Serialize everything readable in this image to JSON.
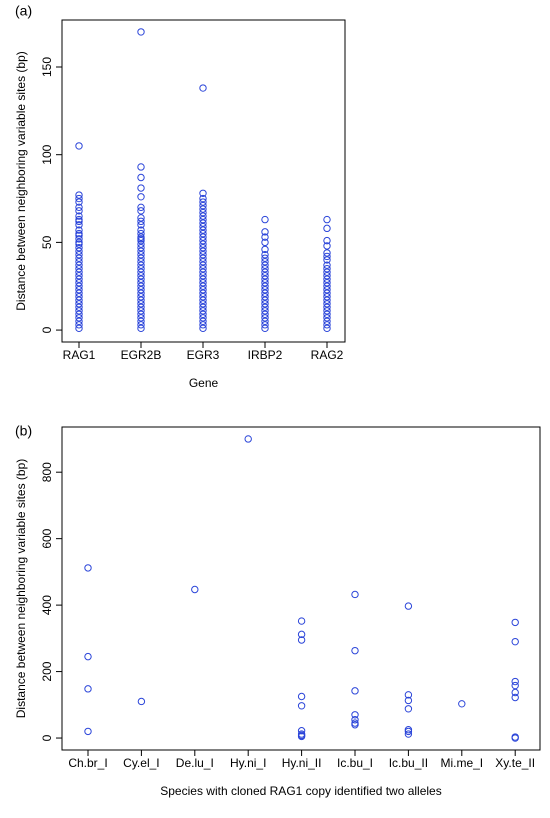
{
  "chart_data": [
    {
      "type": "strip",
      "panel_label": "(a)",
      "x_label": "Gene",
      "y_label": "Distance between neighboring variable sites (bp)",
      "categories": [
        "RAG1",
        "EGR2B",
        "EGR3",
        "IRBP2",
        "RAG2"
      ],
      "values": [
        [
          1,
          3,
          5,
          7,
          9,
          11,
          13,
          15,
          17,
          19,
          21,
          23,
          25,
          27,
          29,
          31,
          33,
          35,
          37,
          39,
          41,
          43,
          45,
          47,
          49,
          50,
          52,
          54,
          55,
          57,
          60,
          62,
          63,
          65,
          68,
          70,
          73,
          75,
          77,
          105
        ],
        [
          1,
          3,
          5,
          7,
          9,
          11,
          13,
          15,
          17,
          19,
          21,
          23,
          25,
          27,
          29,
          31,
          33,
          35,
          37,
          39,
          41,
          43,
          45,
          47,
          49,
          51,
          52,
          53,
          55,
          57,
          60,
          62,
          64,
          68,
          70,
          76,
          81,
          87,
          93,
          170
        ],
        [
          1,
          3,
          5,
          7,
          9,
          11,
          13,
          15,
          17,
          19,
          21,
          23,
          25,
          27,
          29,
          31,
          33,
          35,
          37,
          39,
          41,
          43,
          45,
          47,
          49,
          51,
          53,
          55,
          57,
          59,
          61,
          63,
          65,
          67,
          69,
          71,
          73,
          75,
          78,
          138
        ],
        [
          1,
          3,
          5,
          7,
          9,
          11,
          13,
          15,
          17,
          19,
          21,
          23,
          25,
          27,
          29,
          31,
          33,
          35,
          37,
          39,
          41,
          43,
          46,
          50,
          53,
          56,
          63
        ],
        [
          1,
          3,
          5,
          7,
          9,
          11,
          13,
          15,
          17,
          19,
          21,
          23,
          25,
          27,
          29,
          31,
          33,
          35,
          37,
          40,
          42,
          44,
          48,
          51,
          58,
          63
        ]
      ],
      "color": "#2b45d9",
      "ylim": [
        -6.8,
        176.8
      ],
      "yticks": [
        0,
        50,
        100,
        150
      ]
    },
    {
      "type": "strip",
      "panel_label": "(b)",
      "x_label": "Species with cloned RAG1 copy identified two alleles",
      "y_label": "Distance between neighboring variable sites (bp)",
      "categories": [
        "Ch.br_I",
        "Cy.el_I",
        "De.lu_I",
        "Hy.ni_I",
        "Hy.ni_II",
        "Ic.bu_I",
        "Ic.bu_II",
        "Mi.me_I",
        "Xy.te_II"
      ],
      "values": [
        [
          512,
          245,
          148,
          20
        ],
        [
          110
        ],
        [
          447
        ],
        [
          900
        ],
        [
          352,
          312,
          295,
          125,
          97,
          22,
          12,
          8,
          5
        ],
        [
          432,
          263,
          142,
          70,
          55,
          45,
          40
        ],
        [
          397,
          130,
          113,
          88,
          25,
          20,
          12
        ],
        [
          103
        ],
        [
          348,
          290,
          170,
          158,
          137,
          122,
          3,
          0
        ]
      ],
      "color": "#2b45d9",
      "ylim": [
        -36,
        936
      ],
      "yticks": [
        0,
        200,
        400,
        600,
        800
      ]
    }
  ]
}
